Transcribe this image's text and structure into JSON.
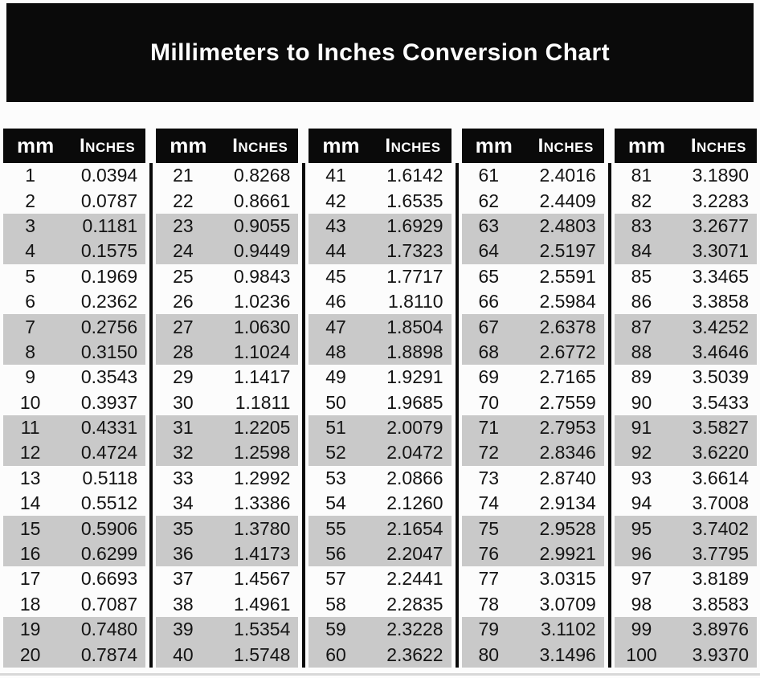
{
  "title": "Millimeters to Inches Conversion Chart",
  "colors": {
    "banner_bg": "#0a0a0a",
    "header_bg": "#0a0a0a",
    "header_text": "#ffffff",
    "stripe_gray": "#c9c9c9",
    "page_bg": "#fcfcfc",
    "body_text": "#141414"
  },
  "table": {
    "col_headers": {
      "mm": "mm",
      "inches": "Inches"
    },
    "stripe_pattern": "pairs-of-two-rows-alternating",
    "groups": [
      {
        "rows": [
          [
            "1",
            "0.0394"
          ],
          [
            "2",
            "0.0787"
          ],
          [
            "3",
            "0.1181"
          ],
          [
            "4",
            "0.1575"
          ],
          [
            "5",
            "0.1969"
          ],
          [
            "6",
            "0.2362"
          ],
          [
            "7",
            "0.2756"
          ],
          [
            "8",
            "0.3150"
          ],
          [
            "9",
            "0.3543"
          ],
          [
            "10",
            "0.3937"
          ],
          [
            "11",
            "0.4331"
          ],
          [
            "12",
            "0.4724"
          ],
          [
            "13",
            "0.5118"
          ],
          [
            "14",
            "0.5512"
          ],
          [
            "15",
            "0.5906"
          ],
          [
            "16",
            "0.6299"
          ],
          [
            "17",
            "0.6693"
          ],
          [
            "18",
            "0.7087"
          ],
          [
            "19",
            "0.7480"
          ],
          [
            "20",
            "0.7874"
          ]
        ]
      },
      {
        "rows": [
          [
            "21",
            "0.8268"
          ],
          [
            "22",
            "0.8661"
          ],
          [
            "23",
            "0.9055"
          ],
          [
            "24",
            "0.9449"
          ],
          [
            "25",
            "0.9843"
          ],
          [
            "26",
            "1.0236"
          ],
          [
            "27",
            "1.0630"
          ],
          [
            "28",
            "1.1024"
          ],
          [
            "29",
            "1.1417"
          ],
          [
            "30",
            "1.1811"
          ],
          [
            "31",
            "1.2205"
          ],
          [
            "32",
            "1.2598"
          ],
          [
            "33",
            "1.2992"
          ],
          [
            "34",
            "1.3386"
          ],
          [
            "35",
            "1.3780"
          ],
          [
            "36",
            "1.4173"
          ],
          [
            "37",
            "1.4567"
          ],
          [
            "38",
            "1.4961"
          ],
          [
            "39",
            "1.5354"
          ],
          [
            "40",
            "1.5748"
          ]
        ]
      },
      {
        "rows": [
          [
            "41",
            "1.6142"
          ],
          [
            "42",
            "1.6535"
          ],
          [
            "43",
            "1.6929"
          ],
          [
            "44",
            "1.7323"
          ],
          [
            "45",
            "1.7717"
          ],
          [
            "46",
            "1.8110"
          ],
          [
            "47",
            "1.8504"
          ],
          [
            "48",
            "1.8898"
          ],
          [
            "49",
            "1.9291"
          ],
          [
            "50",
            "1.9685"
          ],
          [
            "51",
            "2.0079"
          ],
          [
            "52",
            "2.0472"
          ],
          [
            "53",
            "2.0866"
          ],
          [
            "54",
            "2.1260"
          ],
          [
            "55",
            "2.1654"
          ],
          [
            "56",
            "2.2047"
          ],
          [
            "57",
            "2.2441"
          ],
          [
            "58",
            "2.2835"
          ],
          [
            "59",
            "2.3228"
          ],
          [
            "60",
            "2.3622"
          ]
        ]
      },
      {
        "rows": [
          [
            "61",
            "2.4016"
          ],
          [
            "62",
            "2.4409"
          ],
          [
            "63",
            "2.4803"
          ],
          [
            "64",
            "2.5197"
          ],
          [
            "65",
            "2.5591"
          ],
          [
            "66",
            "2.5984"
          ],
          [
            "67",
            "2.6378"
          ],
          [
            "68",
            "2.6772"
          ],
          [
            "69",
            "2.7165"
          ],
          [
            "70",
            "2.7559"
          ],
          [
            "71",
            "2.7953"
          ],
          [
            "72",
            "2.8346"
          ],
          [
            "73",
            "2.8740"
          ],
          [
            "74",
            "2.9134"
          ],
          [
            "75",
            "2.9528"
          ],
          [
            "76",
            "2.9921"
          ],
          [
            "77",
            "3.0315"
          ],
          [
            "78",
            "3.0709"
          ],
          [
            "79",
            "3.1102"
          ],
          [
            "80",
            "3.1496"
          ]
        ]
      },
      {
        "rows": [
          [
            "81",
            "3.1890"
          ],
          [
            "82",
            "3.2283"
          ],
          [
            "83",
            "3.2677"
          ],
          [
            "84",
            "3.3071"
          ],
          [
            "85",
            "3.3465"
          ],
          [
            "86",
            "3.3858"
          ],
          [
            "87",
            "3.4252"
          ],
          [
            "88",
            "3.4646"
          ],
          [
            "89",
            "3.5039"
          ],
          [
            "90",
            "3.5433"
          ],
          [
            "91",
            "3.5827"
          ],
          [
            "92",
            "3.6220"
          ],
          [
            "93",
            "3.6614"
          ],
          [
            "94",
            "3.7008"
          ],
          [
            "95",
            "3.7402"
          ],
          [
            "96",
            "3.7795"
          ],
          [
            "97",
            "3.8189"
          ],
          [
            "98",
            "3.8583"
          ],
          [
            "99",
            "3.8976"
          ],
          [
            "100",
            "3.9370"
          ]
        ]
      }
    ]
  }
}
